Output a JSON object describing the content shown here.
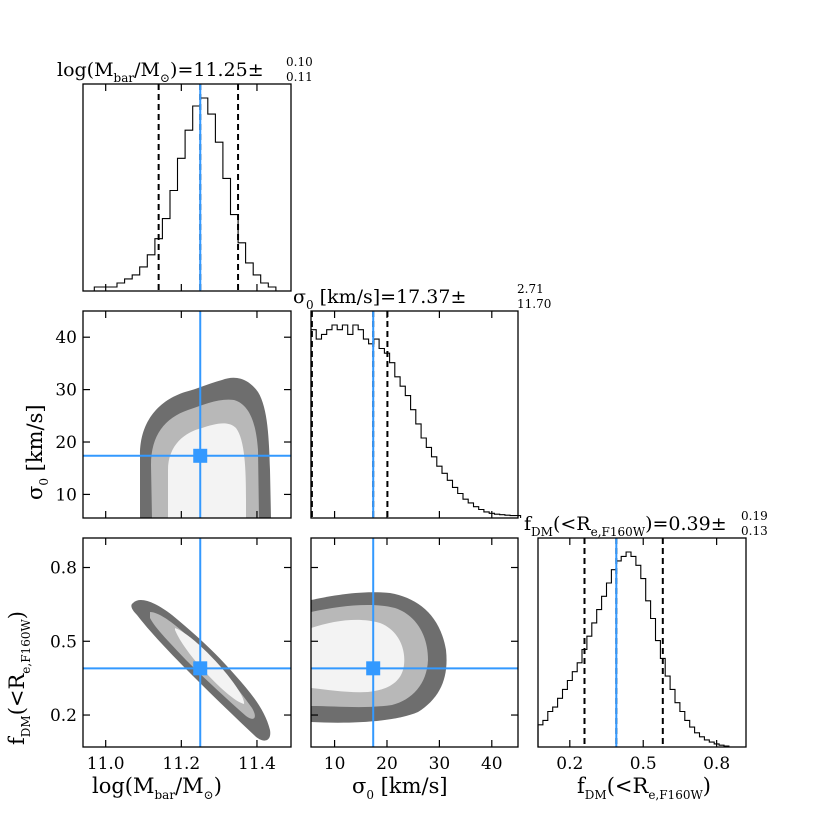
{
  "colors": {
    "accent": "#3399ff",
    "contour_outer": "#6e6e6e",
    "contour_mid": "#b8b8b8",
    "contour_inner": "#f3f3f3",
    "hist_line": "#000000"
  },
  "chart_data": [
    {
      "id": "hist_mbar",
      "type": "histogram",
      "title": {
        "main": "log(M",
        "sub1": "bar",
        "mid": "/M",
        "sun": "⊙",
        "tail": ")=11.25",
        "pm": "±",
        "sup": "0.10",
        "inf": "0.11"
      },
      "x": [
        10.98,
        11.0,
        11.02,
        11.04,
        11.06,
        11.08,
        11.1,
        11.12,
        11.14,
        11.16,
        11.18,
        11.2,
        11.22,
        11.24,
        11.26,
        11.28,
        11.3,
        11.32,
        11.34,
        11.36,
        11.38,
        11.4,
        11.42,
        11.44
      ],
      "values": [
        1,
        1,
        1,
        2,
        3,
        4,
        6,
        9,
        13,
        18,
        25,
        33,
        40,
        46,
        48,
        44,
        37,
        28,
        19,
        12,
        7,
        4,
        2,
        1
      ],
      "xlim": [
        10.94,
        11.49
      ],
      "median": 11.25,
      "lower": 11.14,
      "upper": 11.35,
      "truth": 11.25
    },
    {
      "id": "hist_sigma",
      "type": "histogram",
      "title": {
        "main": "σ",
        "sub1": "0",
        "tail": " [km/s]=17.37",
        "pm": "±",
        "sup": "2.71",
        "inf": "11.70"
      },
      "x": [
        6,
        7,
        8,
        9,
        10,
        11,
        12,
        13,
        14,
        15,
        16,
        17,
        18,
        19,
        20,
        21,
        22,
        23,
        24,
        25,
        26,
        27,
        28,
        29,
        30,
        31,
        32,
        33,
        34,
        35,
        36,
        37,
        38,
        39,
        40,
        41,
        42,
        43,
        44,
        45
      ],
      "values": [
        40,
        38,
        39,
        40,
        41,
        40,
        41,
        39,
        41,
        40,
        38,
        37,
        38,
        36,
        35,
        33,
        30,
        28,
        26,
        23,
        20,
        17,
        15,
        13,
        11,
        9.5,
        8,
        6.5,
        5.2,
        4,
        3.2,
        2.4,
        1.8,
        1.3,
        1,
        0.8,
        0.7,
        0.6,
        0.5,
        0.5
      ],
      "xlim": [
        5.5,
        45
      ],
      "median": 17.37,
      "lower": 5.67,
      "upper": 20.08,
      "truth": 17.37
    },
    {
      "id": "hist_fdm",
      "type": "histogram",
      "title": {
        "main": "f",
        "sub1": "DM",
        "mid": "(<R",
        "sub2": "e,F160W",
        "tail": ")=0.39",
        "pm": "±",
        "sup": "0.19",
        "inf": "0.13"
      },
      "x": [
        0.08,
        0.1,
        0.12,
        0.14,
        0.16,
        0.18,
        0.2,
        0.22,
        0.24,
        0.26,
        0.28,
        0.3,
        0.32,
        0.34,
        0.36,
        0.38,
        0.4,
        0.42,
        0.44,
        0.46,
        0.48,
        0.5,
        0.52,
        0.54,
        0.56,
        0.58,
        0.6,
        0.62,
        0.64,
        0.66,
        0.68,
        0.7,
        0.72,
        0.74,
        0.76,
        0.78,
        0.8,
        0.82,
        0.84
      ],
      "values": [
        5,
        6,
        8,
        9,
        11,
        13,
        15,
        17,
        19,
        22,
        25,
        28,
        31,
        34,
        37,
        40,
        42,
        43,
        44,
        43,
        41,
        38,
        33,
        29,
        24,
        20,
        16,
        13,
        10,
        8,
        6,
        4.5,
        3.2,
        2.3,
        1.6,
        1.1,
        0.7,
        0.4,
        0.2
      ],
      "xlim": [
        0.07,
        0.92
      ],
      "median": 0.39,
      "lower": 0.26,
      "upper": 0.58,
      "truth": 0.39
    },
    {
      "id": "contour_sigma_vs_mbar",
      "type": "contour",
      "x_var": "log(M_bar/M_sun)",
      "y_var": "sigma_0",
      "xlim": [
        10.94,
        11.49
      ],
      "ylim": [
        5.5,
        45
      ],
      "yticks": [
        10,
        20,
        30,
        40
      ],
      "truth": {
        "x": 11.25,
        "y": 17.37
      }
    },
    {
      "id": "contour_fdm_vs_mbar",
      "type": "contour",
      "x_var": "log(M_bar/M_sun)",
      "y_var": "f_DM",
      "xlim": [
        10.94,
        11.49
      ],
      "ylim": [
        0.07,
        0.92
      ],
      "xticks": [
        11.0,
        11.2,
        11.4
      ],
      "xticklabels": [
        "11.0",
        "11.2",
        "11.4"
      ],
      "yticks": [
        0.2,
        0.5,
        0.8
      ],
      "yticklabels": [
        "0.2",
        "0.5",
        "0.8"
      ],
      "truth": {
        "x": 11.25,
        "y": 0.39
      }
    },
    {
      "id": "contour_fdm_vs_sigma",
      "type": "contour",
      "x_var": "sigma_0",
      "y_var": "f_DM",
      "xlim": [
        5.5,
        45
      ],
      "ylim": [
        0.07,
        0.92
      ],
      "xticks": [
        10,
        20,
        30,
        40
      ],
      "truth": {
        "x": 17.37,
        "y": 0.39
      }
    }
  ],
  "axes": {
    "mbar_xlabel": {
      "main": "log(M",
      "sub1": "bar",
      "mid": "/M",
      "sun": "⊙",
      "tail": ")"
    },
    "sigma_label": {
      "main": "σ",
      "sub1": "0",
      "tail": " [km/s]"
    },
    "fdm_label": {
      "main": "f",
      "sub1": "DM",
      "mid": "(<R",
      "sub2": "e,F160W",
      "tail": ")"
    },
    "fdm_ticks": [
      "0.2",
      "0.5",
      "0.8"
    ]
  }
}
